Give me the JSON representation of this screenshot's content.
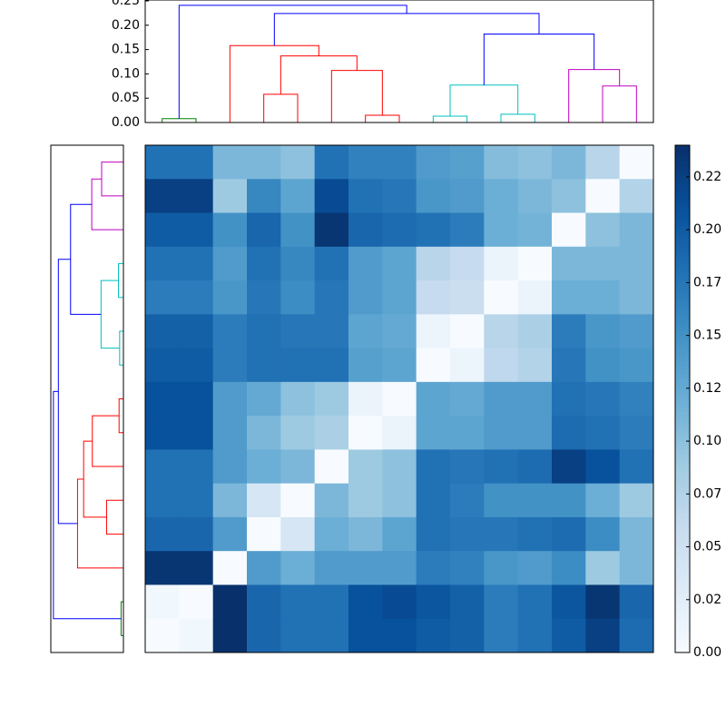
{
  "chart_data": {
    "type": "heatmap",
    "cmap": "Blues",
    "clim": [
      0,
      0.24
    ],
    "colorbar_ticks": [
      {
        "value": 0,
        "label": "0.00"
      },
      {
        "value": 0.025,
        "label": "0.02"
      },
      {
        "value": 0.05,
        "label": "0.05"
      },
      {
        "value": 0.075,
        "label": "0.07"
      },
      {
        "value": 0.1,
        "label": "0.10"
      },
      {
        "value": 0.125,
        "label": "0.12"
      },
      {
        "value": 0.15,
        "label": "0.15"
      },
      {
        "value": 0.175,
        "label": "0.17"
      },
      {
        "value": 0.2,
        "label": "0.20"
      },
      {
        "value": 0.225,
        "label": "0.22"
      }
    ],
    "matrix": [
      [
        0.18,
        0.18,
        0.11,
        0.11,
        0.1,
        0.18,
        0.165,
        0.165,
        0.14,
        0.135,
        0.105,
        0.1,
        0.11,
        0.07,
        0
      ],
      [
        0.225,
        0.225,
        0.09,
        0.16,
        0.13,
        0.215,
        0.18,
        0.175,
        0.145,
        0.14,
        0.12,
        0.11,
        0.1,
        0,
        0.075
      ],
      [
        0.2,
        0.2,
        0.15,
        0.19,
        0.15,
        0.235,
        0.19,
        0.185,
        0.18,
        0.17,
        0.12,
        0.115,
        0,
        0.1,
        0.11
      ],
      [
        0.18,
        0.18,
        0.14,
        0.18,
        0.16,
        0.18,
        0.14,
        0.13,
        0.07,
        0.06,
        0.015,
        0,
        0.11,
        0.11,
        0.11
      ],
      [
        0.17,
        0.17,
        0.145,
        0.175,
        0.155,
        0.175,
        0.14,
        0.13,
        0.06,
        0.055,
        0,
        0.015,
        0.12,
        0.12,
        0.11
      ],
      [
        0.195,
        0.195,
        0.17,
        0.18,
        0.175,
        0.175,
        0.13,
        0.125,
        0.013,
        0,
        0.07,
        0.08,
        0.17,
        0.145,
        0.14
      ],
      [
        0.2,
        0.2,
        0.17,
        0.18,
        0.18,
        0.18,
        0.135,
        0.13,
        0,
        0.013,
        0.065,
        0.075,
        0.175,
        0.15,
        0.145
      ],
      [
        0.21,
        0.21,
        0.14,
        0.125,
        0.1,
        0.09,
        0.015,
        0,
        0.13,
        0.125,
        0.14,
        0.14,
        0.18,
        0.175,
        0.165
      ],
      [
        0.21,
        0.21,
        0.14,
        0.11,
        0.09,
        0.08,
        0,
        0.015,
        0.13,
        0.13,
        0.14,
        0.14,
        0.185,
        0.18,
        0.17
      ],
      [
        0.18,
        0.18,
        0.14,
        0.12,
        0.11,
        0,
        0.09,
        0.1,
        0.18,
        0.175,
        0.18,
        0.185,
        0.225,
        0.21,
        0.18
      ],
      [
        0.18,
        0.18,
        0.11,
        0.04,
        0,
        0.11,
        0.09,
        0.1,
        0.18,
        0.17,
        0.15,
        0.15,
        0.15,
        0.12,
        0.09
      ],
      [
        0.19,
        0.19,
        0.14,
        0,
        0.04,
        0.12,
        0.11,
        0.13,
        0.18,
        0.175,
        0.175,
        0.18,
        0.185,
        0.155,
        0.11
      ],
      [
        0.235,
        0.235,
        0,
        0.14,
        0.12,
        0.14,
        0.14,
        0.14,
        0.17,
        0.165,
        0.145,
        0.14,
        0.155,
        0.09,
        0.11
      ],
      [
        0.008,
        0,
        0.24,
        0.19,
        0.18,
        0.18,
        0.21,
        0.215,
        0.205,
        0.195,
        0.17,
        0.18,
        0.205,
        0.235,
        0.19
      ],
      [
        0,
        0.008,
        0.24,
        0.19,
        0.18,
        0.18,
        0.21,
        0.21,
        0.2,
        0.195,
        0.17,
        0.18,
        0.2,
        0.225,
        0.185
      ]
    ],
    "dendrogram_ylim": [
      0,
      0.25
    ],
    "dendrogram_yticks": [
      {
        "value": 0,
        "label": "0.00"
      },
      {
        "value": 0.05,
        "label": "0.05"
      },
      {
        "value": 0.1,
        "label": "0.10"
      },
      {
        "value": 0.15,
        "label": "0.15"
      },
      {
        "value": 0.2,
        "label": "0.20"
      },
      {
        "value": 0.25,
        "label": "0.25"
      }
    ],
    "linkage": [
      [
        0,
        1,
        0.008,
        "#008000"
      ],
      [
        3,
        4,
        0.058,
        "#ff0000"
      ],
      [
        6,
        7,
        0.015,
        "#ff0000"
      ],
      [
        5,
        17,
        0.107,
        "#ff0000"
      ],
      [
        16,
        18,
        0.137,
        "#ff0000"
      ],
      [
        2,
        19,
        0.158,
        "#ff0000"
      ],
      [
        8,
        9,
        0.013,
        "#00bfbf"
      ],
      [
        10,
        11,
        0.017,
        "#00bfbf"
      ],
      [
        21,
        22,
        0.077,
        "#00bfbf"
      ],
      [
        13,
        14,
        0.075,
        "#bf00bf"
      ],
      [
        12,
        24,
        0.109,
        "#bf00bf"
      ],
      [
        23,
        25,
        0.182,
        "#0000ff"
      ],
      [
        20,
        26,
        0.224,
        "#0000ff"
      ],
      [
        15,
        27,
        0.241,
        "#0000ff"
      ]
    ]
  }
}
